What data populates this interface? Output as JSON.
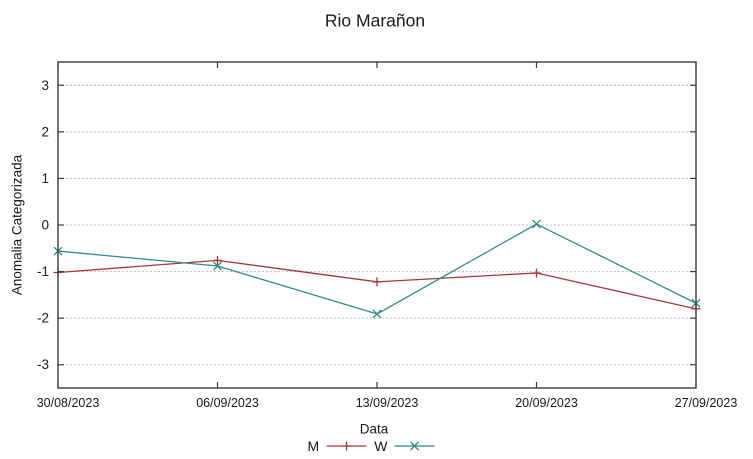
{
  "page": {
    "title": "Rio Marañon"
  },
  "chart_data": {
    "type": "line",
    "title": "Rio Marañon",
    "xlabel": "Data",
    "ylabel": "Anomalia Categorizada",
    "categories": [
      "30/08/2023",
      "06/09/2023",
      "13/09/2023",
      "20/09/2023",
      "27/09/2023"
    ],
    "series": [
      {
        "name": "M",
        "marker": "plus",
        "color": "#a93636",
        "values": [
          -1.02,
          -0.76,
          -1.22,
          -1.03,
          -1.8
        ]
      },
      {
        "name": "W",
        "marker": "cross",
        "color": "#318b8b",
        "values": [
          -0.56,
          -0.88,
          -1.91,
          0.02,
          -1.68
        ]
      }
    ],
    "yticks": [
      3,
      2,
      1,
      0,
      -1,
      -2,
      -3
    ],
    "ylim": [
      -3.5,
      3.5
    ],
    "grid": {
      "horizontal_dotted": true,
      "vertical": false,
      "color": "#a8a8a8"
    },
    "legend_position": "bottom-center",
    "colors": {
      "axis": "#3c3c3c",
      "text": "#1a1a1a"
    }
  }
}
